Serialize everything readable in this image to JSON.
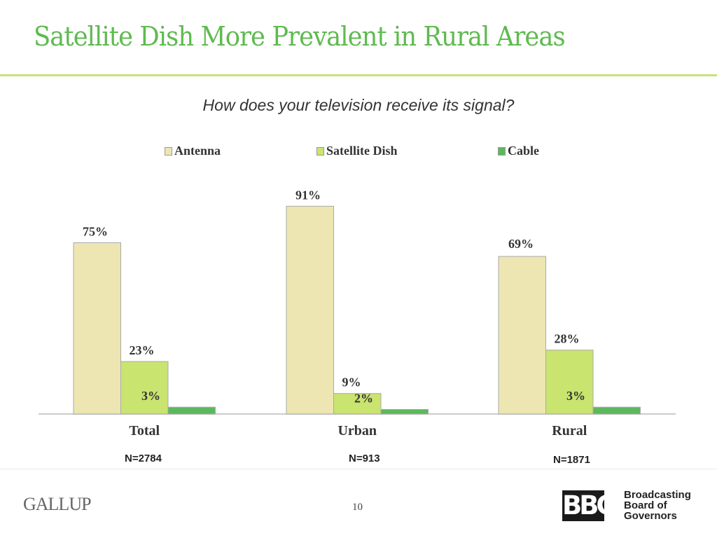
{
  "title": "Satellite Dish More Prevalent in Rural Areas",
  "chart_data": {
    "type": "bar",
    "title": "How does your television receive its signal?",
    "categories": [
      "Total",
      "Urban",
      "Rural"
    ],
    "sample_sizes": [
      "N=2784",
      "N=913",
      "N=1871"
    ],
    "series": [
      {
        "name": "Antenna",
        "values": [
          75,
          91,
          69
        ],
        "labels": [
          "75%",
          "91%",
          "69%"
        ],
        "color": "#ede6b3"
      },
      {
        "name": "Satellite Dish",
        "values": [
          23,
          9,
          28
        ],
        "labels": [
          "23%",
          "9%",
          "28%"
        ],
        "color": "#c9e46f"
      },
      {
        "name": "Cable",
        "values": [
          3,
          2,
          3
        ],
        "labels": [
          "3%",
          "2%",
          "3%"
        ],
        "color": "#5cb85c"
      }
    ],
    "legend": "top",
    "grid": false,
    "ylim": [
      0,
      100
    ]
  },
  "footer": {
    "gallup": "GALLUP",
    "page": "10",
    "bbg_logo": "BBG",
    "bbg_name_lines": [
      "Broadcasting",
      "Board of",
      "Governors"
    ]
  }
}
